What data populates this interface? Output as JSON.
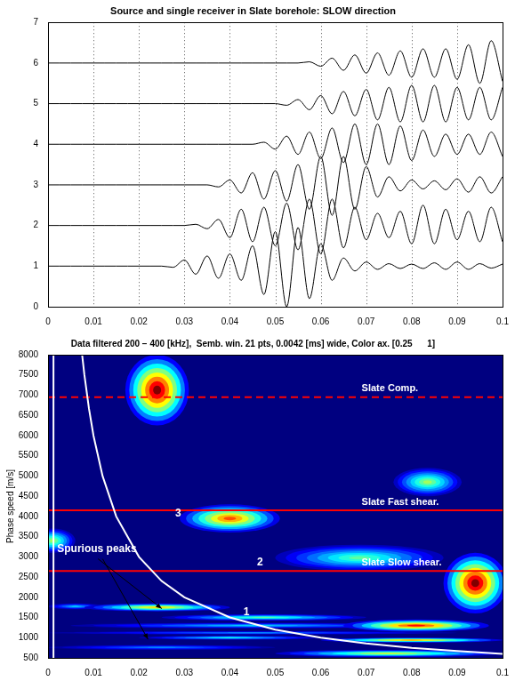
{
  "chart_data": [
    {
      "type": "line",
      "title": "Source and single receiver in Slate borehole: SLOW direction",
      "x": [
        0,
        0.0025,
        0.005,
        0.0075,
        0.01,
        0.0125,
        0.015,
        0.0175,
        0.02,
        0.0225,
        0.025,
        0.0275,
        0.03,
        0.0325,
        0.035,
        0.0375,
        0.04,
        0.0425,
        0.045,
        0.0475,
        0.05,
        0.0525,
        0.055,
        0.0575,
        0.06,
        0.0625,
        0.065,
        0.0675,
        0.07,
        0.0725,
        0.075,
        0.0775,
        0.08,
        0.0825,
        0.085,
        0.0875,
        0.09,
        0.0925,
        0.095,
        0.0975,
        0.1
      ],
      "xlim": [
        0,
        0.1
      ],
      "xticks": [
        0,
        0.01,
        0.02,
        0.03,
        0.04,
        0.05,
        0.06,
        0.07,
        0.08,
        0.09,
        0.1
      ],
      "ylim": [
        0,
        7
      ],
      "yticks": [
        0,
        1,
        2,
        3,
        4,
        5,
        6,
        7
      ],
      "grid": "x",
      "color": "#000000",
      "series": [
        {
          "values": [
            1,
            1,
            1,
            1,
            1,
            1,
            1,
            1,
            1,
            1,
            1,
            0.97,
            1.15,
            0.8,
            1.25,
            0.7,
            1.3,
            0.65,
            1.5,
            0.3,
            1.85,
            0,
            1.95,
            0.2,
            1.55,
            0.65,
            1.2,
            0.88,
            1.1,
            0.92,
            1.06,
            0.94,
            1.05,
            0.94,
            1.08,
            0.92,
            1.1,
            0.92,
            1.06,
            0.95,
            1.05
          ]
        },
        {
          "values": [
            2,
            2,
            2,
            2,
            2,
            2,
            2,
            2,
            2,
            2,
            2,
            2,
            2,
            2.03,
            1.92,
            2.15,
            1.7,
            2.4,
            1.6,
            2.45,
            1.5,
            2.55,
            1.4,
            2.65,
            1.3,
            2.65,
            1.45,
            2.45,
            1.65,
            2.3,
            1.7,
            2.35,
            1.55,
            2.5,
            1.55,
            2.4,
            1.65,
            2.35,
            1.6,
            2.45,
            1.6
          ]
        },
        {
          "values": [
            3,
            3,
            3,
            3,
            3,
            3,
            3,
            3,
            3,
            3,
            3,
            3,
            3,
            3,
            3,
            2.95,
            3.12,
            2.8,
            3.3,
            2.65,
            3.35,
            2.6,
            3.5,
            2.4,
            3.7,
            2.25,
            3.7,
            2.4,
            3.45,
            2.7,
            3.2,
            2.85,
            3.12,
            2.9,
            3.1,
            2.88,
            3.15,
            2.82,
            3.2,
            2.8,
            3.2
          ]
        },
        {
          "values": [
            4,
            4,
            4,
            4,
            4,
            4,
            4,
            4,
            4,
            4,
            4,
            4,
            4,
            4,
            4,
            4,
            4,
            4,
            4,
            4.05,
            3.88,
            4.2,
            3.75,
            4.3,
            3.65,
            4.4,
            3.55,
            4.5,
            3.5,
            4.5,
            3.5,
            4.45,
            3.6,
            4.35,
            3.7,
            4.25,
            3.75,
            4.25,
            3.75,
            4.3,
            3.7
          ]
        },
        {
          "values": [
            5,
            5,
            5,
            5,
            5,
            5,
            5,
            5,
            5,
            5,
            5,
            5,
            5,
            5,
            5,
            5,
            5,
            5,
            5,
            5,
            5,
            4.96,
            5.1,
            4.85,
            5.2,
            4.75,
            5.3,
            4.7,
            5.35,
            4.6,
            5.4,
            4.55,
            5.45,
            4.55,
            5.45,
            4.55,
            5.4,
            4.6,
            5.4,
            4.6,
            5.4
          ]
        },
        {
          "values": [
            6,
            6,
            6,
            6,
            6,
            6,
            6,
            6,
            6,
            6,
            6,
            6,
            6,
            6,
            6,
            6,
            6,
            6,
            6,
            6,
            6,
            6,
            6,
            6.03,
            5.92,
            6.12,
            5.82,
            6.2,
            5.75,
            6.25,
            5.7,
            6.3,
            5.65,
            6.35,
            5.65,
            6.35,
            5.6,
            6.45,
            5.5,
            6.55,
            5.55
          ]
        }
      ]
    },
    {
      "type": "heatmap",
      "title": "Data filtered 200 − 400 [kHz],  Semb. win. 21 pts, 0.0042 [ms] wide, Color ax. [0.25      1]",
      "y_label": "Phase speed [m/s]",
      "xlim": [
        0,
        0.1
      ],
      "xticks": [
        0,
        0.01,
        0.02,
        0.03,
        0.04,
        0.05,
        0.06,
        0.07,
        0.08,
        0.09,
        0.1
      ],
      "ylim": [
        500,
        8000
      ],
      "yticks": [
        500,
        1000,
        1500,
        2000,
        2500,
        3000,
        3500,
        4000,
        4500,
        5000,
        5500,
        6000,
        6500,
        7000,
        7500,
        8000
      ],
      "grid": false,
      "color_range": [
        0.25,
        1
      ],
      "cells": [
        {
          "x": [
            -0.004,
            0.006
          ],
          "y": [
            3100,
            3700
          ],
          "value": 0.65
        },
        {
          "x": [
            0.0,
            0.05
          ],
          "y": [
            700,
            820
          ],
          "value": 0.45
        },
        {
          "x": [
            0.0,
            0.09
          ],
          "y": [
            1080,
            1160
          ],
          "value": 0.45
        },
        {
          "x": [
            0.005,
            0.085
          ],
          "y": [
            1230,
            1370
          ],
          "value": 0.5
        },
        {
          "x": [
            0.0,
            0.012
          ],
          "y": [
            1700,
            1850
          ],
          "value": 0.5
        },
        {
          "x": [
            0.02,
            0.06
          ],
          "y": [
            950,
            1050
          ],
          "value": 0.55
        },
        {
          "x": [
            0.025,
            0.07
          ],
          "y": [
            1420,
            1580
          ],
          "value": 0.6
        },
        {
          "x": [
            0.008,
            0.04
          ],
          "y": [
            1650,
            1850
          ],
          "value": 0.75
        },
        {
          "x": [
            0.05,
            0.1
          ],
          "y": [
            520,
            700
          ],
          "value": 0.7
        },
        {
          "x": [
            0.06,
            0.1
          ],
          "y": [
            880,
            1000
          ],
          "value": 0.8
        },
        {
          "x": [
            0.065,
            0.097
          ],
          "y": [
            1150,
            1450
          ],
          "value": 0.9
        },
        {
          "x": [
            0.017,
            0.031
          ],
          "y": [
            6250,
            8000
          ],
          "value": 1.0
        },
        {
          "x": [
            0.029,
            0.051
          ],
          "y": [
            3600,
            4300
          ],
          "value": 0.85
        },
        {
          "x": [
            0.05,
            0.087
          ],
          "y": [
            2650,
            3300
          ],
          "value": 0.6
        },
        {
          "x": [
            0.076,
            0.091
          ],
          "y": [
            4500,
            5200
          ],
          "value": 0.65
        },
        {
          "x": [
            0.087,
            0.101
          ],
          "y": [
            1600,
            3100
          ],
          "value": 1.0
        }
      ],
      "series": [
        {
          "color": "#ffffff",
          "x": [
            0.0075,
            0.008,
            0.009,
            0.01,
            0.012,
            0.015,
            0.02,
            0.025,
            0.03,
            0.04,
            0.05,
            0.06,
            0.07,
            0.08,
            0.09,
            0.1
          ],
          "values": [
            8000,
            7500,
            6670,
            6000,
            5000,
            4000,
            3000,
            2400,
            2000,
            1500,
            1200,
            1000,
            860,
            750,
            670,
            600
          ]
        },
        {
          "color": "#ffffff",
          "x": [
            0.0012,
            0.0012
          ],
          "values": [
            500,
            8000
          ]
        }
      ],
      "reference_lines": [
        {
          "value": 6950,
          "label": "Slate Comp.",
          "color": "#ff0000",
          "line_style": "dashed"
        },
        {
          "value": 4150,
          "label": "Slate Fast shear.",
          "color": "#ff0000",
          "line_style": "solid"
        },
        {
          "value": 2650,
          "label": "Slate Slow shear.",
          "color": "#ff0000",
          "line_style": "solid"
        }
      ],
      "annotations": [
        {
          "text": "Spurious peaks",
          "x": 0.002,
          "y": 3200
        },
        {
          "text": "1",
          "x": 0.043,
          "y": 1630
        },
        {
          "text": "2",
          "x": 0.046,
          "y": 2860
        },
        {
          "text": "3",
          "x": 0.028,
          "y": 4060
        }
      ],
      "arrows": [
        {
          "from": [
            0.011,
            2950
          ],
          "to": [
            0.025,
            1720
          ]
        },
        {
          "from": [
            0.012,
            2950
          ],
          "to": [
            0.022,
            960
          ]
        }
      ]
    }
  ]
}
